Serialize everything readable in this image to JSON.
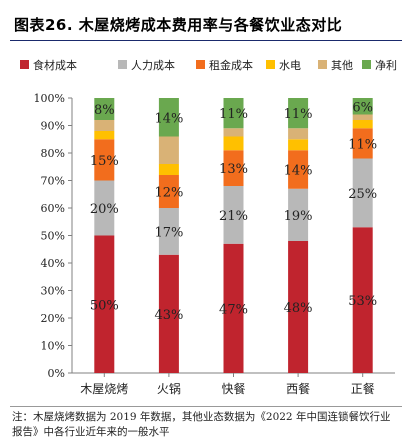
{
  "title": "图表26. 木屋烧烤成本费用率与各餐饮业态对比",
  "note": "注：木屋烧烤数据为 2019 年数据，其他业态数据为《2022 年中国连锁餐饮行业报告》中各行业近年来的一般水平",
  "chart_data": {
    "type": "bar",
    "stacked": true,
    "categories": [
      "木屋烧烤",
      "火锅",
      "快餐",
      "西餐",
      "正餐"
    ],
    "ylim": [
      0,
      100
    ],
    "yticks": [
      "0%",
      "10%",
      "20%",
      "30%",
      "40%",
      "50%",
      "60%",
      "70%",
      "80%",
      "90%",
      "100%"
    ],
    "legend_position": "top",
    "grid": false,
    "series": [
      {
        "name": "食材成本",
        "color": "#c0242e",
        "values": [
          50,
          43,
          47,
          48,
          53
        ],
        "labels": [
          "50%",
          "43%",
          "47%",
          "48%",
          "53%"
        ]
      },
      {
        "name": "人力成本",
        "color": "#b8b8b8",
        "values": [
          20,
          17,
          21,
          19,
          25
        ],
        "labels": [
          "20%",
          "17%",
          "21%",
          "19%",
          "25%"
        ]
      },
      {
        "name": "租金成本",
        "color": "#f26d1d",
        "values": [
          15,
          12,
          13,
          14,
          11
        ],
        "labels": [
          "15%",
          "12%",
          "13%",
          "14%",
          "11%"
        ]
      },
      {
        "name": "水电",
        "color": "#ffc000",
        "values": [
          3,
          4,
          5,
          4,
          3
        ],
        "labels": [
          "",
          "",
          "",
          "",
          ""
        ]
      },
      {
        "name": "其他",
        "color": "#d9b276",
        "values": [
          4,
          10,
          3,
          4,
          2
        ],
        "labels": [
          "",
          "",
          "",
          "",
          ""
        ]
      },
      {
        "name": "净利",
        "color": "#6aa84f",
        "values": [
          8,
          14,
          11,
          11,
          6
        ],
        "labels": [
          "8%",
          "14%",
          "11%",
          "11%",
          "6%"
        ]
      }
    ]
  }
}
